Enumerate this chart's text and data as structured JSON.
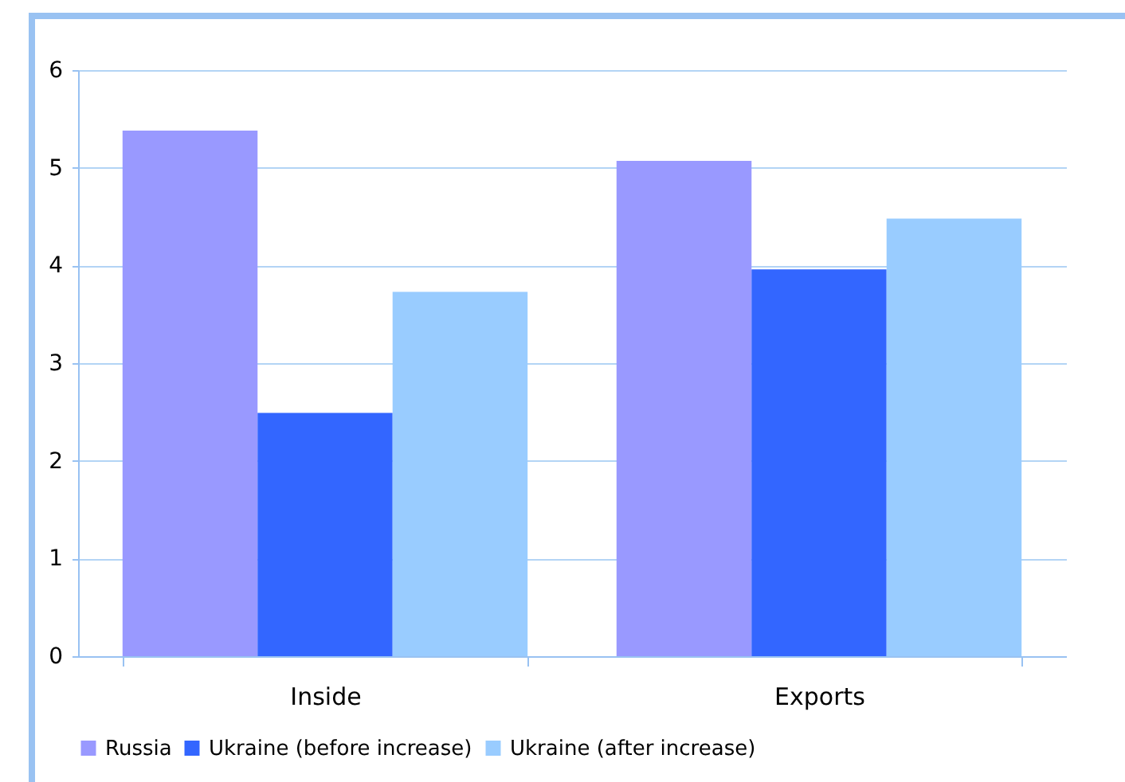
{
  "chart_data": {
    "type": "bar",
    "categories": [
      "Inside",
      "Exports"
    ],
    "series": [
      {
        "name": "Russia",
        "color": "#9999ff",
        "values": [
          5.38,
          5.07
        ]
      },
      {
        "name": "Ukraine (before increase)",
        "color": "#3366ff",
        "values": [
          2.49,
          3.96
        ]
      },
      {
        "name": "Ukraine (after increase)",
        "color": "#99ccff",
        "values": [
          3.73,
          4.48
        ]
      }
    ],
    "ylim": [
      0,
      6
    ],
    "yticks": [
      0,
      1,
      2,
      3,
      4,
      5,
      6
    ],
    "grid": "y",
    "legend": "bottom"
  }
}
